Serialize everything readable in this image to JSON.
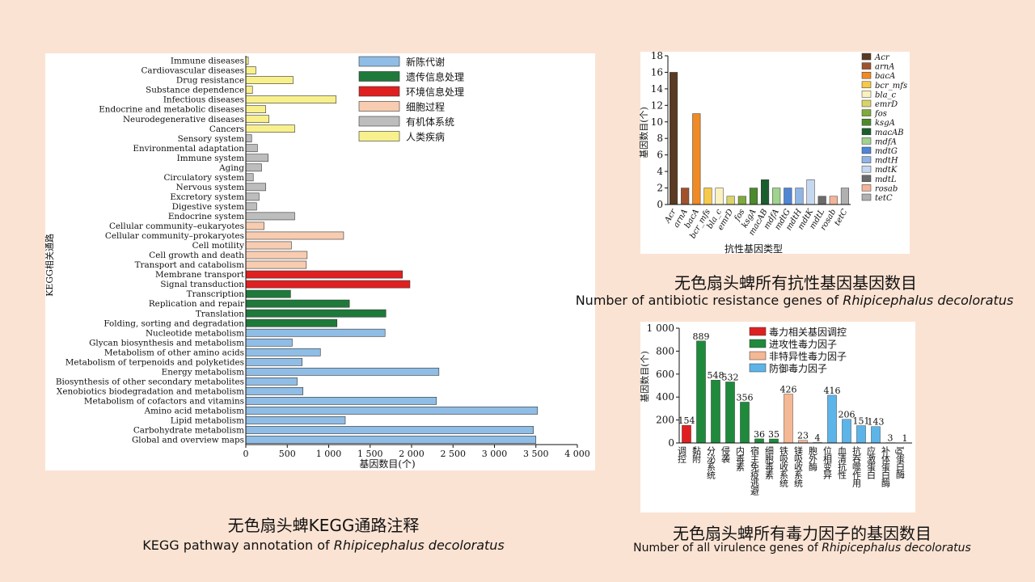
{
  "captions": {
    "kegg_cn": "无色扇头蜱KEGG通路注释",
    "kegg_en_prefix": "KEGG pathway annotation of ",
    "kegg_en_species": "Rhipicephalus decoloratus",
    "res_cn": "无色扇头蜱所有抗性基因基因数目",
    "res_en_prefix": "Number of antibiotic resistance genes of ",
    "res_en_species": "Rhipicephalus decoloratus",
    "vir_cn": "无色扇头蜱所有毒力因子的基因数目",
    "vir_en_prefix": "Number of all virulence genes of ",
    "vir_en_species": "Rhipicephalus decoloratus"
  },
  "colors": {
    "metabolism": "#8fbde6",
    "genetic": "#1e7a3a",
    "environmental": "#e02020",
    "cellular": "#f8ccb0",
    "organismal": "#bdbdbd",
    "human": "#f8f08c",
    "vir_red": "#e02020",
    "vir_green": "#1f8a3c",
    "vir_peach": "#f4b894",
    "vir_blue": "#5db4e8"
  },
  "chart_data": [
    {
      "id": "kegg",
      "type": "bar",
      "orientation": "horizontal",
      "xlabel": "基因数目(个)",
      "ylabel": "KEGG相关通路",
      "xlim": [
        0,
        4000
      ],
      "xticks": [
        0,
        500,
        1000,
        1500,
        2000,
        2500,
        3000,
        3500,
        4000
      ],
      "xtick_labels": [
        "0",
        "500",
        "1 000",
        "1 500",
        "2 000",
        "2 500",
        "3 000",
        "3 500",
        "4 000"
      ],
      "legend": [
        {
          "label": "新陈代谢",
          "color_key": "metabolism"
        },
        {
          "label": "遗传信息处理",
          "color_key": "genetic"
        },
        {
          "label": "环境信息处理",
          "color_key": "environmental"
        },
        {
          "label": "细胞过程",
          "color_key": "cellular"
        },
        {
          "label": "有机体系统",
          "color_key": "organismal"
        },
        {
          "label": "人类疾病",
          "color_key": "human"
        }
      ],
      "categories": [
        {
          "label": "Immune diseases",
          "value": 30,
          "group": "human"
        },
        {
          "label": "Cardiovascular diseases",
          "value": 120,
          "group": "human"
        },
        {
          "label": "Drug resistance",
          "value": 570,
          "group": "human"
        },
        {
          "label": "Substance dependence",
          "value": 80,
          "group": "human"
        },
        {
          "label": "Infectious diseases",
          "value": 1090,
          "group": "human"
        },
        {
          "label": "Endocrine and metabolic diseases",
          "value": 240,
          "group": "human"
        },
        {
          "label": "Neurodegenerative diseases",
          "value": 280,
          "group": "human"
        },
        {
          "label": "Cancers",
          "value": 590,
          "group": "human"
        },
        {
          "label": "Sensory system",
          "value": 70,
          "group": "organismal"
        },
        {
          "label": "Environmental adaptation",
          "value": 140,
          "group": "organismal"
        },
        {
          "label": "Immune system",
          "value": 270,
          "group": "organismal"
        },
        {
          "label": "Aging",
          "value": 190,
          "group": "organismal"
        },
        {
          "label": "Circulatory system",
          "value": 90,
          "group": "organismal"
        },
        {
          "label": "Nervous system",
          "value": 240,
          "group": "organismal"
        },
        {
          "label": "Excretory system",
          "value": 160,
          "group": "organismal"
        },
        {
          "label": "Digestive system",
          "value": 130,
          "group": "organismal"
        },
        {
          "label": "Endocrine system",
          "value": 590,
          "group": "organismal"
        },
        {
          "label": "Cellular community–eukaryotes",
          "value": 220,
          "group": "cellular"
        },
        {
          "label": "Cellular community–prokaryotes",
          "value": 1180,
          "group": "cellular"
        },
        {
          "label": "Cell motility",
          "value": 550,
          "group": "cellular"
        },
        {
          "label": "Cell growth and death",
          "value": 740,
          "group": "cellular"
        },
        {
          "label": "Transport and catabolism",
          "value": 730,
          "group": "cellular"
        },
        {
          "label": "Membrane transport",
          "value": 1890,
          "group": "environmental"
        },
        {
          "label": "Signal transduction",
          "value": 1980,
          "group": "environmental"
        },
        {
          "label": "Transcription",
          "value": 540,
          "group": "genetic"
        },
        {
          "label": "Replication and repair",
          "value": 1250,
          "group": "genetic"
        },
        {
          "label": "Translation",
          "value": 1690,
          "group": "genetic"
        },
        {
          "label": "Folding, sorting and degradation",
          "value": 1100,
          "group": "genetic"
        },
        {
          "label": "Nucleotide metabolism",
          "value": 1680,
          "group": "metabolism"
        },
        {
          "label": "Glycan biosynthesis and metabolism",
          "value": 560,
          "group": "metabolism"
        },
        {
          "label": "Metabolism of other amino acids",
          "value": 900,
          "group": "metabolism"
        },
        {
          "label": "Metabolism of terpenoids and polyketides",
          "value": 680,
          "group": "metabolism"
        },
        {
          "label": "Energy metabolism",
          "value": 2330,
          "group": "metabolism"
        },
        {
          "label": "Biosynthesis of other secondary metabolites",
          "value": 620,
          "group": "metabolism"
        },
        {
          "label": "Xenobiotics biodegradation and metabolism",
          "value": 690,
          "group": "metabolism"
        },
        {
          "label": "Metabolism of cofactors and vitamins",
          "value": 2300,
          "group": "metabolism"
        },
        {
          "label": "Amino acid metabolism",
          "value": 3520,
          "group": "metabolism"
        },
        {
          "label": "Lipid metabolism",
          "value": 1200,
          "group": "metabolism"
        },
        {
          "label": "Carbohydrate metabolism",
          "value": 3470,
          "group": "metabolism"
        },
        {
          "label": "Global and overview maps",
          "value": 3500,
          "group": "metabolism"
        }
      ]
    },
    {
      "id": "resistance",
      "type": "bar",
      "xlabel": "抗性基因类型",
      "ylabel": "基因数目(个)",
      "ylim": [
        0,
        18
      ],
      "yticks": [
        0,
        2,
        4,
        6,
        8,
        10,
        12,
        14,
        16,
        18
      ],
      "categories": [
        "Acr",
        "arnA",
        "bacA",
        "bcr_mfs",
        "bla_c",
        "emrD",
        "fos",
        "ksgA",
        "macAB",
        "mdfA",
        "mdtG",
        "mdtH",
        "mdtK",
        "mdtL",
        "rosab",
        "tetC"
      ],
      "values": [
        16,
        2,
        11,
        2,
        2,
        1,
        1,
        2,
        3,
        2,
        2,
        2,
        3,
        1,
        1,
        2
      ],
      "colors": [
        "#5a3a22",
        "#a0522d",
        "#f08a24",
        "#f7c948",
        "#fbf1bf",
        "#d9d46a",
        "#7faa3c",
        "#4d8a2c",
        "#1b5e2e",
        "#9fd38e",
        "#4f86d6",
        "#8fb4e6",
        "#c6d8f0",
        "#6b6b6b",
        "#f3b49a",
        "#b0b0b0"
      ]
    },
    {
      "id": "virulence",
      "type": "bar",
      "ylabel": "基因数目(个)",
      "ylim": [
        0,
        1000
      ],
      "yticks": [
        0,
        200,
        400,
        600,
        800,
        1000
      ],
      "ytick_labels": [
        "0",
        "200",
        "400",
        "600",
        "800",
        "1 000"
      ],
      "legend": [
        {
          "label": "毒力相关基因调控",
          "color_key": "vir_red"
        },
        {
          "label": "进攻性毒力因子",
          "color_key": "vir_green"
        },
        {
          "label": "非特异性毒力因子",
          "color_key": "vir_peach"
        },
        {
          "label": "防御毒力因子",
          "color_key": "vir_blue"
        }
      ],
      "categories": [
        "调控",
        "黏附",
        "分泌系统",
        "侵袭",
        "内毒素",
        "宿主免疫逃避",
        "细胞毒素",
        "铁吸收系统",
        "镁吸收系统",
        "胞外酶",
        "位相变异",
        "血清抗性",
        "抗吞噬作用",
        "应激蛋白",
        "补体蛋白酶",
        "Ig蛋白酶"
      ],
      "values": [
        154,
        889,
        548,
        532,
        356,
        36,
        35,
        426,
        23,
        4,
        416,
        206,
        151,
        143,
        3,
        1
      ],
      "groups": [
        "vir_red",
        "vir_green",
        "vir_green",
        "vir_green",
        "vir_green",
        "vir_green",
        "vir_green",
        "vir_peach",
        "vir_peach",
        "vir_peach",
        "vir_blue",
        "vir_blue",
        "vir_blue",
        "vir_blue",
        "vir_blue",
        "vir_blue"
      ]
    }
  ]
}
